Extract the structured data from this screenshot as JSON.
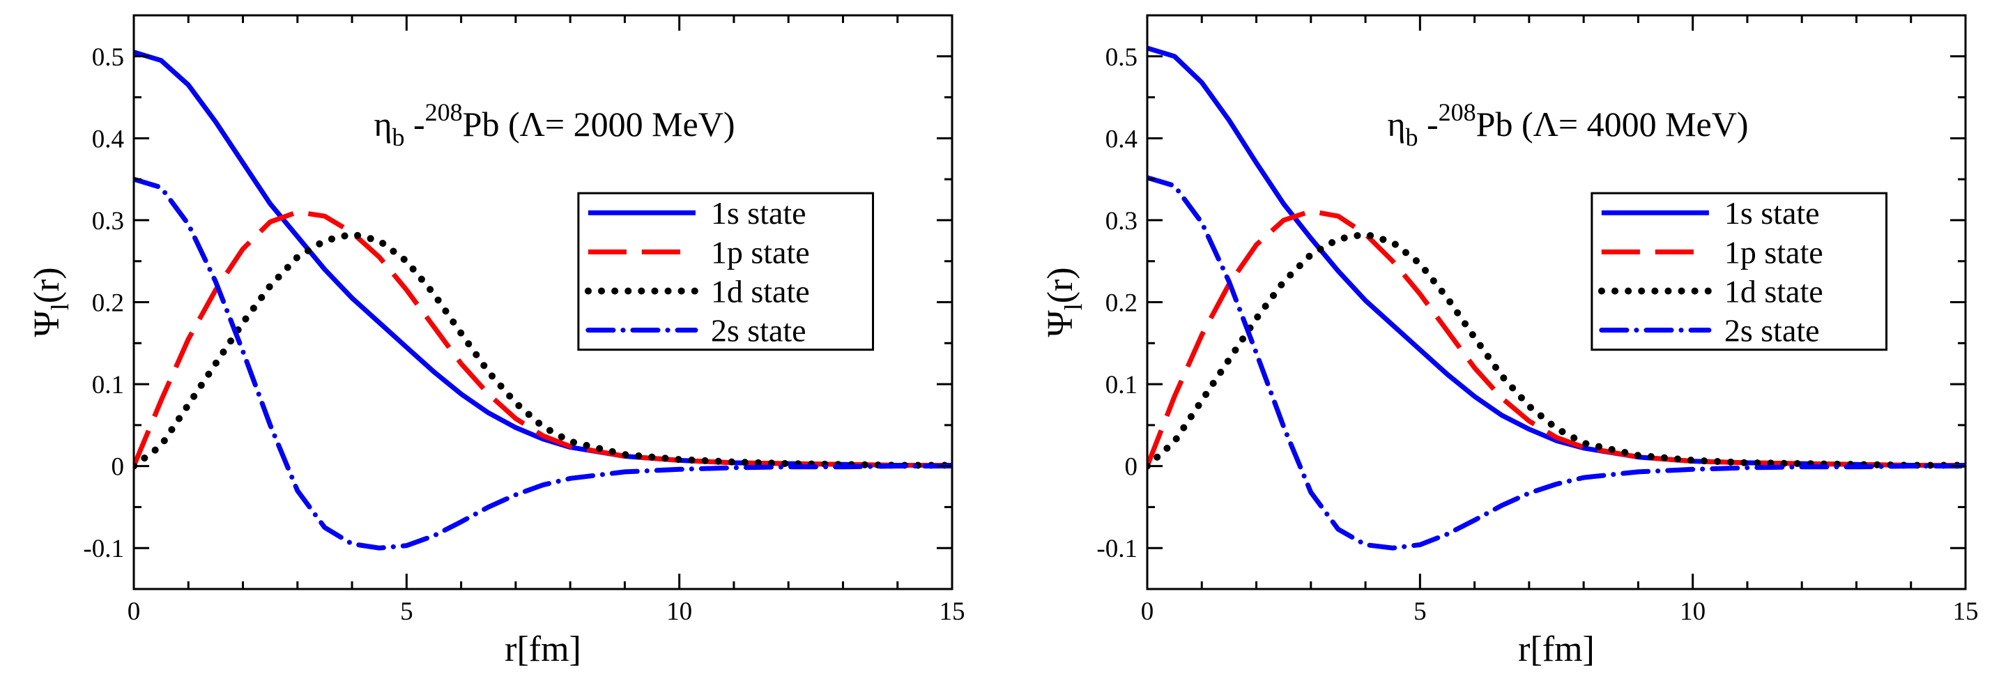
{
  "chart_data": [
    {
      "type": "line",
      "annotation": {
        "text": "η_b - 208Pb (Λ= 2000 MeV)",
        "particle": "η",
        "particle_sub": "b",
        "dash": " -",
        "mass_number": "208",
        "nucleus": "Pb",
        "cutoff": " (Λ= 2000 MeV)"
      },
      "xlabel": "r[fm]",
      "ylabel": "Ψ_l(r)",
      "ylabel_main": "Ψ",
      "ylabel_sub": "l",
      "ylabel_arg": "(r)",
      "xlim": [
        0,
        15
      ],
      "ylim": [
        -0.15,
        0.55
      ],
      "xticks": [
        0,
        5,
        10,
        15
      ],
      "xtick_labels": [
        "0",
        "5",
        "10",
        "15"
      ],
      "yticks": [
        -0.1,
        0,
        0.1,
        0.2,
        0.3,
        0.4,
        0.5
      ],
      "ytick_labels": [
        "-0.1",
        "0",
        "0.1",
        "0.2",
        "0.3",
        "0.4",
        "0.5"
      ],
      "grid": false,
      "legend_position": "right",
      "series": [
        {
          "name": "1s state",
          "color": "#0000ff",
          "style": "solid",
          "x": [
            0,
            0.5,
            1,
            1.5,
            2,
            2.5,
            3,
            3.5,
            4,
            4.5,
            5,
            5.5,
            6,
            6.5,
            7,
            7.5,
            8,
            9,
            10,
            11,
            12,
            13,
            14,
            15
          ],
          "y": [
            0.505,
            0.495,
            0.465,
            0.42,
            0.37,
            0.32,
            0.28,
            0.24,
            0.205,
            0.175,
            0.145,
            0.115,
            0.088,
            0.065,
            0.047,
            0.033,
            0.023,
            0.012,
            0.007,
            0.004,
            0.003,
            0.002,
            0.001,
            0.001
          ]
        },
        {
          "name": "1p state",
          "color": "#ff0000",
          "style": "dashed",
          "x": [
            0,
            0.5,
            1,
            1.5,
            2,
            2.5,
            3,
            3.5,
            4,
            4.5,
            5,
            5.5,
            6,
            6.5,
            7,
            7.5,
            8,
            9,
            10,
            11,
            12,
            13,
            14,
            15
          ],
          "y": [
            0,
            0.08,
            0.155,
            0.215,
            0.265,
            0.298,
            0.31,
            0.305,
            0.285,
            0.255,
            0.215,
            0.17,
            0.125,
            0.088,
            0.058,
            0.037,
            0.024,
            0.012,
            0.007,
            0.004,
            0.003,
            0.002,
            0.001,
            0.001
          ]
        },
        {
          "name": "1d state",
          "color": "#000000",
          "style": "dotted",
          "x": [
            0,
            0.5,
            1,
            1.5,
            2,
            2.5,
            3,
            3.5,
            4,
            4.5,
            5,
            5.5,
            6,
            6.5,
            7,
            7.5,
            8,
            9,
            10,
            11,
            12,
            13,
            14,
            15
          ],
          "y": [
            0,
            0.025,
            0.075,
            0.125,
            0.175,
            0.22,
            0.255,
            0.275,
            0.283,
            0.275,
            0.25,
            0.21,
            0.162,
            0.115,
            0.077,
            0.048,
            0.03,
            0.014,
            0.008,
            0.005,
            0.003,
            0.002,
            0.001,
            0.001
          ]
        },
        {
          "name": "2s state",
          "color": "#0000ff",
          "style": "dashdot",
          "x": [
            0,
            0.5,
            1,
            1.5,
            2,
            2.5,
            3,
            3.5,
            4,
            4.5,
            5,
            5.5,
            6,
            6.5,
            7,
            7.5,
            8,
            9,
            10,
            11,
            12,
            13,
            14,
            15
          ],
          "y": [
            0.35,
            0.34,
            0.295,
            0.225,
            0.14,
            0.05,
            -0.03,
            -0.075,
            -0.095,
            -0.1,
            -0.097,
            -0.085,
            -0.068,
            -0.05,
            -0.035,
            -0.023,
            -0.015,
            -0.007,
            -0.004,
            -0.002,
            -0.001,
            -0.001,
            0,
            0
          ]
        }
      ]
    },
    {
      "type": "line",
      "annotation": {
        "text": "η_b - 208Pb (Λ= 4000 MeV)",
        "particle": "η",
        "particle_sub": "b",
        "dash": " -",
        "mass_number": "208",
        "nucleus": "Pb",
        "cutoff": " (Λ= 4000 MeV)"
      },
      "xlabel": "r[fm]",
      "ylabel": "Ψ_l(r)",
      "ylabel_main": "Ψ",
      "ylabel_sub": "l",
      "ylabel_arg": "(r)",
      "xlim": [
        0,
        15
      ],
      "ylim": [
        -0.15,
        0.55
      ],
      "xticks": [
        0,
        5,
        10,
        15
      ],
      "xtick_labels": [
        "0",
        "5",
        "10",
        "15"
      ],
      "yticks": [
        -0.1,
        0,
        0.1,
        0.2,
        0.3,
        0.4,
        0.5
      ],
      "ytick_labels": [
        "-0.1",
        "0",
        "0.1",
        "0.2",
        "0.3",
        "0.4",
        "0.5"
      ],
      "grid": false,
      "legend_position": "right",
      "series": [
        {
          "name": "1s state",
          "color": "#0000ff",
          "style": "solid",
          "x": [
            0,
            0.5,
            1,
            1.5,
            2,
            2.5,
            3,
            3.5,
            4,
            4.5,
            5,
            5.5,
            6,
            6.5,
            7,
            7.5,
            8,
            9,
            10,
            11,
            12,
            13,
            14,
            15
          ],
          "y": [
            0.51,
            0.5,
            0.468,
            0.422,
            0.37,
            0.32,
            0.278,
            0.238,
            0.202,
            0.172,
            0.142,
            0.112,
            0.085,
            0.062,
            0.045,
            0.031,
            0.022,
            0.011,
            0.006,
            0.004,
            0.003,
            0.002,
            0.001,
            0.001
          ]
        },
        {
          "name": "1p state",
          "color": "#ff0000",
          "style": "dashed",
          "x": [
            0,
            0.5,
            1,
            1.5,
            2,
            2.5,
            3,
            3.5,
            4,
            4.5,
            5,
            5.5,
            6,
            6.5,
            7,
            7.5,
            8,
            9,
            10,
            11,
            12,
            13,
            14,
            15
          ],
          "y": [
            0,
            0.085,
            0.16,
            0.222,
            0.27,
            0.3,
            0.311,
            0.305,
            0.283,
            0.25,
            0.21,
            0.165,
            0.12,
            0.083,
            0.055,
            0.035,
            0.023,
            0.011,
            0.006,
            0.004,
            0.003,
            0.002,
            0.001,
            0.001
          ]
        },
        {
          "name": "1d state",
          "color": "#000000",
          "style": "dotted",
          "x": [
            0,
            0.5,
            1,
            1.5,
            2,
            2.5,
            3,
            3.5,
            4,
            4.5,
            5,
            5.5,
            6,
            6.5,
            7,
            7.5,
            8,
            9,
            10,
            11,
            12,
            13,
            14,
            15
          ],
          "y": [
            0,
            0.03,
            0.08,
            0.13,
            0.18,
            0.225,
            0.258,
            0.277,
            0.283,
            0.273,
            0.247,
            0.205,
            0.157,
            0.11,
            0.073,
            0.046,
            0.028,
            0.013,
            0.007,
            0.004,
            0.003,
            0.002,
            0.001,
            0.001
          ]
        },
        {
          "name": "2s state",
          "color": "#0000ff",
          "style": "dashdot",
          "x": [
            0,
            0.5,
            1,
            1.5,
            2,
            2.5,
            3,
            3.5,
            4,
            4.5,
            5,
            5.5,
            6,
            6.5,
            7,
            7.5,
            8,
            9,
            10,
            11,
            12,
            13,
            14,
            15
          ],
          "y": [
            0.352,
            0.342,
            0.297,
            0.225,
            0.138,
            0.048,
            -0.032,
            -0.077,
            -0.096,
            -0.1,
            -0.096,
            -0.083,
            -0.066,
            -0.048,
            -0.033,
            -0.022,
            -0.014,
            -0.007,
            -0.004,
            -0.002,
            -0.001,
            -0.001,
            0,
            0
          ]
        }
      ]
    }
  ]
}
